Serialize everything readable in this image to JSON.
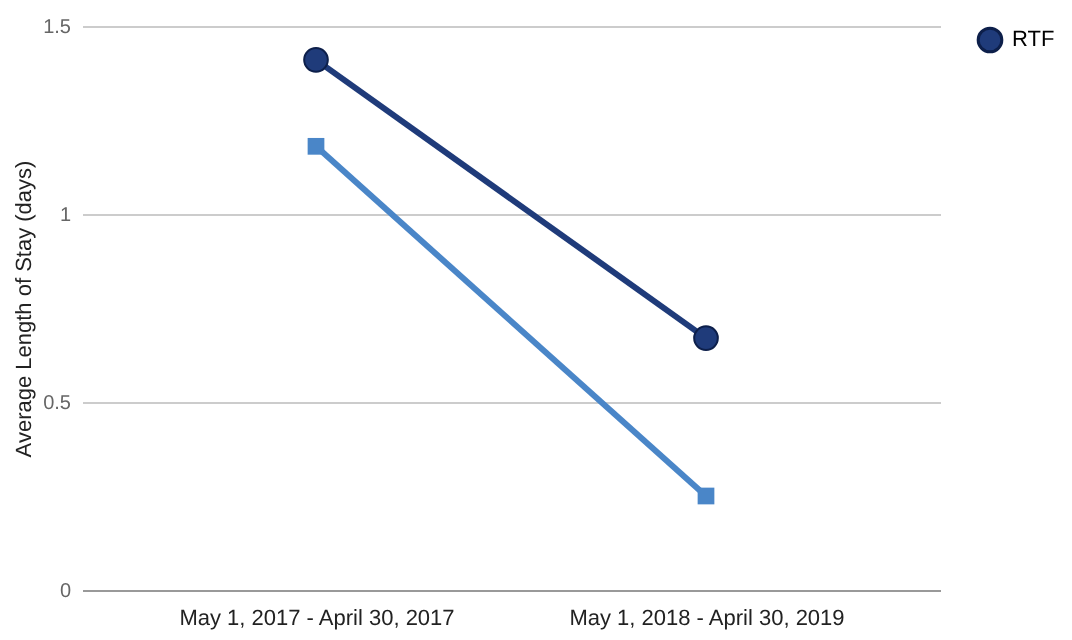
{
  "chart_data": {
    "type": "line",
    "ylabel": "Average Length of Stay (days)",
    "categories": [
      "May 1, 2017 - April 30, 2017",
      "May 1, 2018 - April 30, 2019"
    ],
    "series": [
      {
        "name": "RTF",
        "color": "#1f3b7a",
        "marker": "circle",
        "values": [
          1.41,
          0.67
        ]
      },
      {
        "color": "#4a86c8",
        "marker": "square",
        "values": [
          1.18,
          0.25
        ]
      }
    ],
    "ylim": [
      0,
      1.5
    ],
    "yticks": [
      0,
      0.5,
      1,
      1.5
    ],
    "grid": "y",
    "legend": "top right"
  }
}
